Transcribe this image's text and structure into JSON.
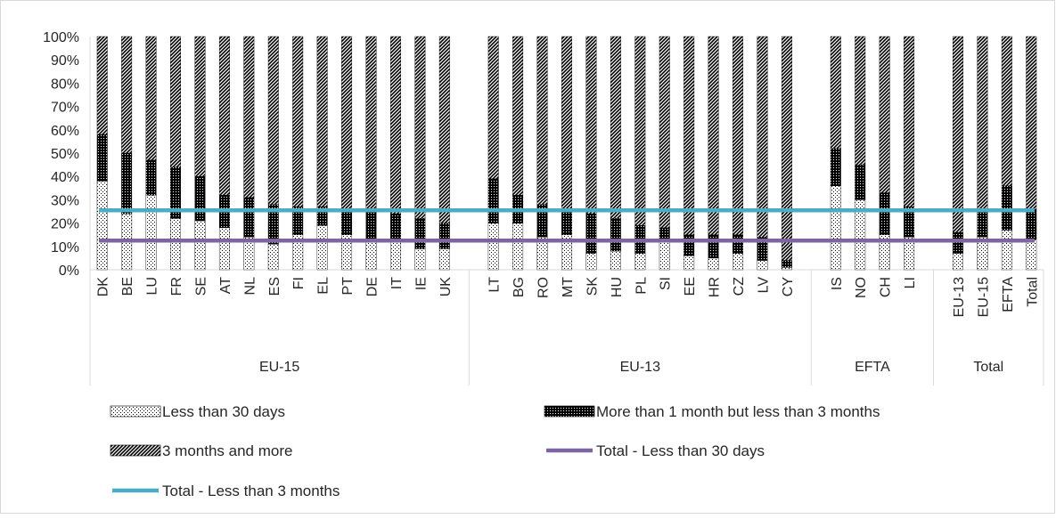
{
  "chart_data": {
    "type": "bar",
    "stacked": true,
    "percent_scale": true,
    "categories": [
      "DK",
      "BE",
      "LU",
      "FR",
      "SE",
      "AT",
      "NL",
      "ES",
      "FI",
      "EL",
      "PT",
      "DE",
      "IT",
      "IE",
      "UK",
      "LT",
      "BG",
      "RO",
      "MT",
      "SK",
      "HU",
      "PL",
      "SI",
      "EE",
      "HR",
      "CZ",
      "LV",
      "CY",
      "IS",
      "NO",
      "CH",
      "LI",
      "EU-13",
      "EU-15",
      "EFTA",
      "Total"
    ],
    "groups": [
      {
        "label": "EU-15",
        "members": [
          "DK",
          "BE",
          "LU",
          "FR",
          "SE",
          "AT",
          "NL",
          "ES",
          "FI",
          "EL",
          "PT",
          "DE",
          "IT",
          "IE",
          "UK"
        ]
      },
      {
        "label": "EU-13",
        "members": [
          "LT",
          "BG",
          "RO",
          "MT",
          "SK",
          "HU",
          "PL",
          "SI",
          "EE",
          "HR",
          "CZ",
          "LV",
          "CY"
        ]
      },
      {
        "label": "EFTA",
        "members": [
          "IS",
          "NO",
          "CH",
          "LI"
        ]
      },
      {
        "label": "Total",
        "members": [
          "EU-13",
          "EU-15",
          "EFTA",
          "Total"
        ]
      }
    ],
    "series": [
      {
        "name": "Less than 30 days",
        "pattern": "dots",
        "values": [
          38,
          24,
          32,
          22,
          21,
          18,
          14,
          11,
          15,
          19,
          15,
          12,
          12,
          9,
          9,
          20,
          20,
          14,
          15,
          7,
          8,
          7,
          12,
          6,
          5,
          7,
          4,
          1,
          36,
          30,
          15,
          14,
          7,
          14,
          17,
          13
        ]
      },
      {
        "name": "More than 1 month but less than 3 months",
        "pattern": "checks",
        "values": [
          20,
          26,
          15,
          22,
          19,
          14,
          17,
          17,
          12,
          8,
          11,
          13,
          12,
          13,
          11,
          19,
          12,
          14,
          10,
          17,
          14,
          12,
          6,
          9,
          10,
          8,
          10,
          3,
          16,
          15,
          18,
          13,
          9,
          12,
          19,
          13
        ]
      },
      {
        "name": "3 months and more",
        "pattern": "diagonal",
        "values": [
          42,
          50,
          53,
          56,
          60,
          68,
          69,
          72,
          73,
          73,
          74,
          75,
          76,
          78,
          80,
          61,
          68,
          72,
          75,
          76,
          78,
          81,
          82,
          85,
          85,
          85,
          86,
          96,
          48,
          55,
          67,
          73,
          84,
          74,
          64,
          74
        ]
      }
    ],
    "reference_lines": [
      {
        "name": "Total - Less than 30 days",
        "value": 12.5,
        "color": "#8064a2"
      },
      {
        "name": "Total - Less than 3 months",
        "value": 25.5,
        "color": "#4bacc6"
      }
    ],
    "ylim": [
      0,
      100
    ],
    "yticks": [
      "0%",
      "10%",
      "20%",
      "30%",
      "40%",
      "50%",
      "60%",
      "70%",
      "80%",
      "90%",
      "100%"
    ],
    "grid": false,
    "legend": {
      "placement": "bottom",
      "entries": [
        {
          "label": "Less than 30 days",
          "kind": "pattern",
          "pattern": "dots"
        },
        {
          "label": "More than 1 month but less than 3 months",
          "kind": "pattern",
          "pattern": "checks"
        },
        {
          "label": "3 months and more",
          "kind": "pattern",
          "pattern": "diagonal"
        },
        {
          "label": "Total - Less than 30 days",
          "kind": "line",
          "color": "#8064a2"
        },
        {
          "label": "Total - Less than 3 months",
          "kind": "line",
          "color": "#4bacc6"
        }
      ]
    }
  }
}
